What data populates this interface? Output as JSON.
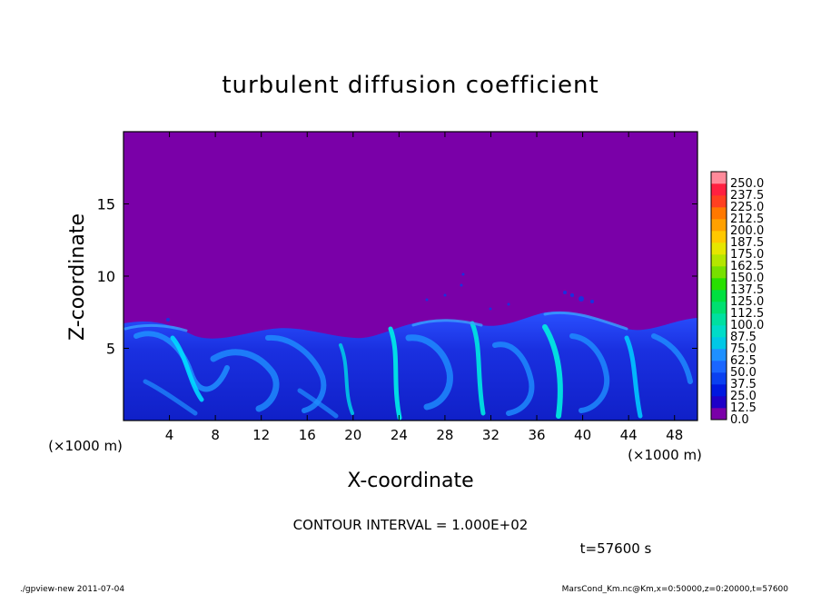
{
  "chart_data": {
    "type": "heatmap",
    "title": "turbulent diffusion coefficient",
    "xlabel": "X-coordinate",
    "ylabel": "Z-coordinate",
    "x_unit": "(×1000 m)",
    "y_unit": "(×1000 m)",
    "xlim": [
      0,
      50
    ],
    "ylim": [
      0,
      20
    ],
    "x_ticks": [
      "4",
      "8",
      "12",
      "16",
      "20",
      "24",
      "28",
      "32",
      "36",
      "40",
      "44",
      "48"
    ],
    "y_ticks": [
      "5",
      "10",
      "15"
    ],
    "colorbar": {
      "levels": [
        "0.0",
        "12.5",
        "25.0",
        "37.5",
        "50.0",
        "62.5",
        "75.0",
        "87.5",
        "100.0",
        "112.5",
        "125.0",
        "137.5",
        "150.0",
        "162.5",
        "175.0",
        "187.5",
        "200.0",
        "212.5",
        "225.0",
        "237.5",
        "250.0"
      ],
      "colors": [
        "#7a00a8",
        "#1e00c8",
        "#0018e0",
        "#0a40f0",
        "#1a66ff",
        "#1e90ff",
        "#00c8e6",
        "#00dcc8",
        "#00e0a0",
        "#00e070",
        "#00e040",
        "#28e000",
        "#78e000",
        "#b4e600",
        "#e6e600",
        "#ffc800",
        "#ffa000",
        "#ff7800",
        "#ff4020",
        "#ff2040",
        "#ff8a9a"
      ]
    },
    "background_value_color": "#7a00a8",
    "contour_interval": "CONTOUR INTERVAL = 1.000E+02",
    "time_label": "t=57600 s"
  },
  "footer": {
    "left": "./gpview-new   2011-07-04",
    "right": "MarsCond_Km.nc@Km,x=0:50000,z=0:20000,t=57600"
  }
}
